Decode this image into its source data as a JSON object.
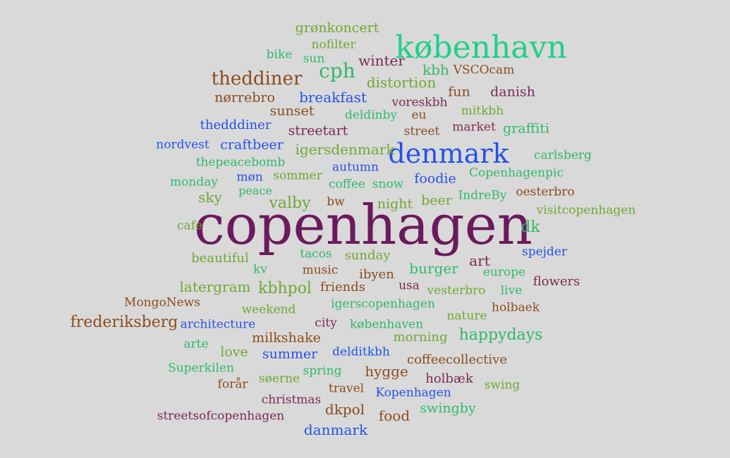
{
  "palette": {
    "purple": "#6b1a5c",
    "green": "#2fb86b",
    "teal": "#1fcf8a",
    "blue": "#2352e6",
    "brown": "#8b4b1c",
    "olive": "#6fa832",
    "plum": "#7a2a52"
  },
  "words": [
    {
      "text": "copenhagen",
      "color": "purple"
    },
    {
      "text": "københavn",
      "color": "teal"
    },
    {
      "text": "denmark",
      "color": "blue"
    },
    {
      "text": "cph",
      "color": "green"
    },
    {
      "text": "theddiner",
      "color": "brown"
    },
    {
      "text": "grønkoncert",
      "color": "olive"
    },
    {
      "text": "nofilter",
      "color": "olive"
    },
    {
      "text": "bike",
      "color": "green"
    },
    {
      "text": "sun",
      "color": "green"
    },
    {
      "text": "winter",
      "color": "plum"
    },
    {
      "text": "kbh",
      "color": "green"
    },
    {
      "text": "VSCOcam",
      "color": "brown"
    },
    {
      "text": "distortion",
      "color": "olive"
    },
    {
      "text": "nørrebro",
      "color": "brown"
    },
    {
      "text": "breakfast",
      "color": "blue"
    },
    {
      "text": "fun",
      "color": "brown"
    },
    {
      "text": "danish",
      "color": "plum"
    },
    {
      "text": "voreskbh",
      "color": "plum"
    },
    {
      "text": "sunset",
      "color": "brown"
    },
    {
      "text": "deldinby",
      "color": "green"
    },
    {
      "text": "eu",
      "color": "brown"
    },
    {
      "text": "mitkbh",
      "color": "olive"
    },
    {
      "text": "thedddiner",
      "color": "blue"
    },
    {
      "text": "streetart",
      "color": "plum"
    },
    {
      "text": "street",
      "color": "brown"
    },
    {
      "text": "market",
      "color": "plum"
    },
    {
      "text": "graffiti",
      "color": "green"
    },
    {
      "text": "nordvest",
      "color": "blue"
    },
    {
      "text": "craftbeer",
      "color": "blue"
    },
    {
      "text": "igersdenmark",
      "color": "olive"
    },
    {
      "text": "carlsberg",
      "color": "green"
    },
    {
      "text": "thepeacebomb",
      "color": "green"
    },
    {
      "text": "autumn",
      "color": "blue"
    },
    {
      "text": "møn",
      "color": "blue"
    },
    {
      "text": "sommer",
      "color": "olive"
    },
    {
      "text": "foodie",
      "color": "blue"
    },
    {
      "text": "Copenhagenpic",
      "color": "green"
    },
    {
      "text": "monday",
      "color": "green"
    },
    {
      "text": "peace",
      "color": "green"
    },
    {
      "text": "coffee",
      "color": "green"
    },
    {
      "text": "snow",
      "color": "green"
    },
    {
      "text": "IndreBy",
      "color": "green"
    },
    {
      "text": "oesterbro",
      "color": "brown"
    },
    {
      "text": "sky",
      "color": "olive"
    },
    {
      "text": "valby",
      "color": "olive"
    },
    {
      "text": "bw",
      "color": "brown"
    },
    {
      "text": "night",
      "color": "olive"
    },
    {
      "text": "beer",
      "color": "olive"
    },
    {
      "text": "visitcopenhagen",
      "color": "olive"
    },
    {
      "text": "cafe",
      "color": "olive"
    },
    {
      "text": "dk",
      "color": "green"
    },
    {
      "text": "beautiful",
      "color": "olive"
    },
    {
      "text": "tacos",
      "color": "green"
    },
    {
      "text": "sunday",
      "color": "olive"
    },
    {
      "text": "art",
      "color": "plum"
    },
    {
      "text": "spejder",
      "color": "blue"
    },
    {
      "text": "kv",
      "color": "green"
    },
    {
      "text": "music",
      "color": "brown"
    },
    {
      "text": "ibyen",
      "color": "brown"
    },
    {
      "text": "burger",
      "color": "green"
    },
    {
      "text": "europe",
      "color": "green"
    },
    {
      "text": "flowers",
      "color": "plum"
    },
    {
      "text": "latergram",
      "color": "olive"
    },
    {
      "text": "kbhpol",
      "color": "olive"
    },
    {
      "text": "friends",
      "color": "brown"
    },
    {
      "text": "usa",
      "color": "plum"
    },
    {
      "text": "vesterbro",
      "color": "olive"
    },
    {
      "text": "live",
      "color": "green"
    },
    {
      "text": "MongoNews",
      "color": "brown"
    },
    {
      "text": "weekend",
      "color": "olive"
    },
    {
      "text": "igerscopenhagen",
      "color": "green"
    },
    {
      "text": "nature",
      "color": "olive"
    },
    {
      "text": "holbaek",
      "color": "brown"
    },
    {
      "text": "frederiksberg",
      "color": "brown"
    },
    {
      "text": "architecture",
      "color": "blue"
    },
    {
      "text": "city",
      "color": "plum"
    },
    {
      "text": "københaven",
      "color": "green"
    },
    {
      "text": "happydays",
      "color": "green"
    },
    {
      "text": "arte",
      "color": "green"
    },
    {
      "text": "milkshake",
      "color": "brown"
    },
    {
      "text": "morning",
      "color": "olive"
    },
    {
      "text": "love",
      "color": "olive"
    },
    {
      "text": "summer",
      "color": "blue"
    },
    {
      "text": "delditkbh",
      "color": "blue"
    },
    {
      "text": "coffeecollective",
      "color": "brown"
    },
    {
      "text": "Superkilen",
      "color": "green"
    },
    {
      "text": "spring",
      "color": "green"
    },
    {
      "text": "hygge",
      "color": "brown"
    },
    {
      "text": "forår",
      "color": "brown"
    },
    {
      "text": "søerne",
      "color": "olive"
    },
    {
      "text": "holbæk",
      "color": "plum"
    },
    {
      "text": "swing",
      "color": "olive"
    },
    {
      "text": "travel",
      "color": "brown"
    },
    {
      "text": "Kopenhagen",
      "color": "blue"
    },
    {
      "text": "christmas",
      "color": "plum"
    },
    {
      "text": "dkpol",
      "color": "brown"
    },
    {
      "text": "food",
      "color": "brown"
    },
    {
      "text": "swingby",
      "color": "green"
    },
    {
      "text": "streetsofcopenhagen",
      "color": "plum"
    },
    {
      "text": "danmark",
      "color": "blue"
    }
  ]
}
